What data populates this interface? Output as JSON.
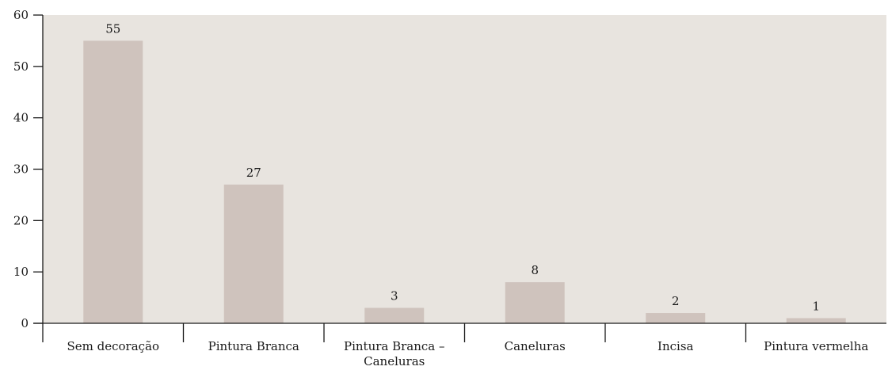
{
  "chart_data": {
    "type": "bar",
    "categories": [
      [
        "Sem decoração"
      ],
      [
        "Pintura Branca"
      ],
      [
        "Pintura Branca –",
        "Caneluras"
      ],
      [
        "Caneluras"
      ],
      [
        "Incisa"
      ],
      [
        "Pintura vermelha"
      ]
    ],
    "values": [
      55,
      27,
      3,
      8,
      2,
      1
    ],
    "ylim": [
      0,
      60
    ],
    "yticks": [
      0,
      10,
      20,
      30,
      40,
      50,
      60
    ],
    "title": "",
    "xlabel": "",
    "ylabel": "",
    "grid": false,
    "legend": "none",
    "colors": {
      "plot_background": "#e8e4df",
      "bar": "#cfc3bd",
      "axis": "#1a1a1a"
    }
  }
}
